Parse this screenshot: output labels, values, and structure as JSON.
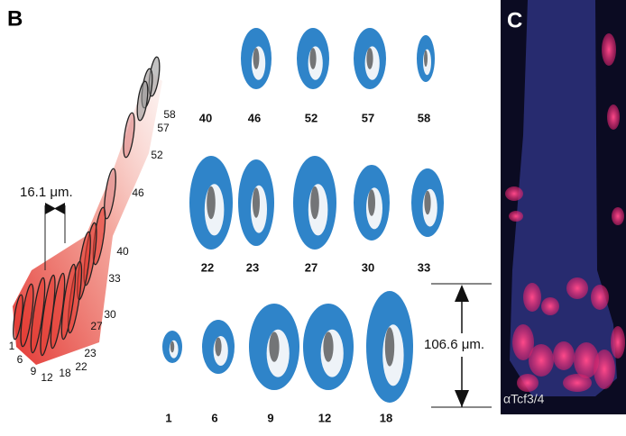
{
  "panel_b": {
    "label": "B",
    "diagram": {
      "width_label": "16.1 μm.",
      "sections": [
        "58",
        "57",
        "52",
        "46",
        "40",
        "33",
        "30",
        "27",
        "23",
        "22",
        "18",
        "12",
        "9",
        "6",
        "1"
      ]
    },
    "grid": {
      "rows": [
        [
          "40",
          "46",
          "52",
          "57",
          "58"
        ],
        [
          "22",
          "23",
          "27",
          "30",
          "33"
        ],
        [
          "1",
          "6",
          "9",
          "12",
          "18"
        ]
      ],
      "scale_label": "106.6 μm."
    }
  },
  "panel_c": {
    "label": "C",
    "stain": "αTcf3/4"
  }
}
